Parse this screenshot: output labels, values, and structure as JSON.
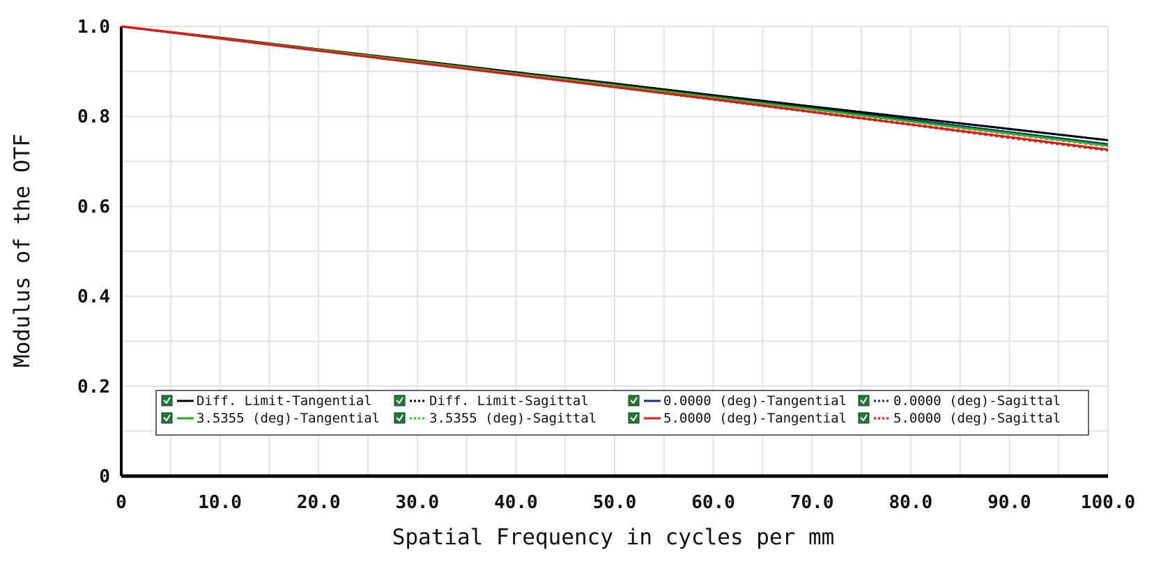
{
  "chart_data": {
    "type": "line",
    "title": "",
    "xlabel": "Spatial Frequency in cycles per mm",
    "ylabel": "Modulus of the OTF",
    "xlim": [
      0,
      100
    ],
    "ylim": [
      0,
      1.0
    ],
    "x_ticks": [
      "0",
      "10.0",
      "20.0",
      "30.0",
      "40.0",
      "50.0",
      "60.0",
      "70.0",
      "80.0",
      "90.0",
      "100.0"
    ],
    "y_ticks": [
      "0",
      "0.2",
      "0.4",
      "0.6",
      "0.8",
      "1.0"
    ],
    "grid": true,
    "legend_position": "bottom",
    "series": [
      {
        "name": "Diff. Limit-Tangential",
        "color": "#000000",
        "dash": "solid",
        "x": [
          0,
          10,
          20,
          30,
          40,
          50,
          60,
          70,
          80,
          90,
          100
        ],
        "y": [
          1.0,
          0.975,
          0.949,
          0.924,
          0.898,
          0.873,
          0.847,
          0.822,
          0.797,
          0.772,
          0.747
        ]
      },
      {
        "name": "Diff. Limit-Sagittal",
        "color": "#000000",
        "dash": "dotted",
        "x": [
          0,
          10,
          20,
          30,
          40,
          50,
          60,
          70,
          80,
          90,
          100
        ],
        "y": [
          1.0,
          0.975,
          0.949,
          0.924,
          0.898,
          0.873,
          0.847,
          0.822,
          0.797,
          0.772,
          0.747
        ]
      },
      {
        "name": "0.0000 (deg)-Tangential",
        "color": "#1a2a8c",
        "dash": "solid",
        "x": [
          0,
          10,
          20,
          30,
          40,
          50,
          60,
          70,
          80,
          90,
          100
        ],
        "y": [
          1.0,
          0.974,
          0.948,
          0.922,
          0.896,
          0.87,
          0.844,
          0.818,
          0.792,
          0.765,
          0.738
        ]
      },
      {
        "name": "0.0000 (deg)-Sagittal",
        "color": "#1a2a8c",
        "dash": "dotted",
        "x": [
          0,
          10,
          20,
          30,
          40,
          50,
          60,
          70,
          80,
          90,
          100
        ],
        "y": [
          1.0,
          0.974,
          0.948,
          0.922,
          0.896,
          0.87,
          0.844,
          0.818,
          0.792,
          0.765,
          0.738
        ]
      },
      {
        "name": "3.5355 (deg)-Tangential",
        "color": "#22aa22",
        "dash": "solid",
        "x": [
          0,
          10,
          20,
          30,
          40,
          50,
          60,
          70,
          80,
          90,
          100
        ],
        "y": [
          1.0,
          0.974,
          0.948,
          0.922,
          0.895,
          0.869,
          0.842,
          0.816,
          0.789,
          0.762,
          0.735
        ]
      },
      {
        "name": "3.5355 (deg)-Sagittal",
        "color": "#22cc22",
        "dash": "dotted",
        "x": [
          0,
          10,
          20,
          30,
          40,
          50,
          60,
          70,
          80,
          90,
          100
        ],
        "y": [
          1.0,
          0.974,
          0.947,
          0.921,
          0.894,
          0.868,
          0.841,
          0.814,
          0.787,
          0.76,
          0.733
        ]
      },
      {
        "name": "5.0000 (deg)-Tangential",
        "color": "#ee1111",
        "dash": "solid",
        "x": [
          0,
          10,
          20,
          30,
          40,
          50,
          60,
          70,
          80,
          90,
          100
        ],
        "y": [
          1.0,
          0.973,
          0.946,
          0.919,
          0.892,
          0.865,
          0.838,
          0.81,
          0.782,
          0.754,
          0.726
        ]
      },
      {
        "name": "5.0000 (deg)-Sagittal",
        "color": "#ee1111",
        "dash": "dotted",
        "x": [
          0,
          10,
          20,
          30,
          40,
          50,
          60,
          70,
          80,
          90,
          100
        ],
        "y": [
          1.0,
          0.973,
          0.946,
          0.919,
          0.892,
          0.865,
          0.837,
          0.809,
          0.781,
          0.752,
          0.724
        ]
      }
    ]
  }
}
